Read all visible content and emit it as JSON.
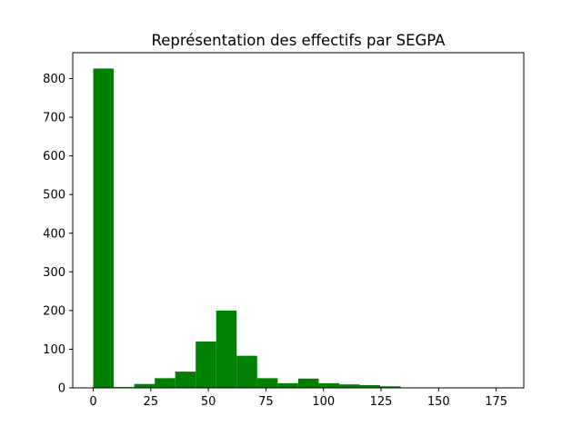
{
  "chart_data": {
    "type": "bar",
    "title": "Représentation des effectifs par SEGPA",
    "xlabel": "",
    "ylabel": "",
    "xlim": [
      -8.9,
      187.0
    ],
    "ylim": [
      0,
      867
    ],
    "xticks": [
      0,
      25,
      50,
      75,
      100,
      125,
      150,
      175
    ],
    "yticks": [
      0,
      100,
      200,
      300,
      400,
      500,
      600,
      700,
      800
    ],
    "bin_width": 8.9,
    "bar_color": "#008000",
    "bins": [
      {
        "x0": 0.0,
        "value": 826
      },
      {
        "x0": 8.9,
        "value": 2
      },
      {
        "x0": 17.8,
        "value": 10
      },
      {
        "x0": 26.7,
        "value": 25
      },
      {
        "x0": 35.6,
        "value": 42
      },
      {
        "x0": 44.5,
        "value": 120
      },
      {
        "x0": 53.4,
        "value": 200
      },
      {
        "x0": 62.3,
        "value": 83
      },
      {
        "x0": 71.2,
        "value": 25
      },
      {
        "x0": 80.1,
        "value": 12
      },
      {
        "x0": 89.0,
        "value": 24
      },
      {
        "x0": 97.9,
        "value": 12
      },
      {
        "x0": 106.8,
        "value": 9
      },
      {
        "x0": 115.7,
        "value": 7
      },
      {
        "x0": 124.6,
        "value": 4
      },
      {
        "x0": 133.5,
        "value": 0
      },
      {
        "x0": 142.4,
        "value": 0
      },
      {
        "x0": 151.3,
        "value": 0
      },
      {
        "x0": 160.2,
        "value": 0
      },
      {
        "x0": 169.1,
        "value": 1
      }
    ],
    "grid": false,
    "legend": "none"
  }
}
